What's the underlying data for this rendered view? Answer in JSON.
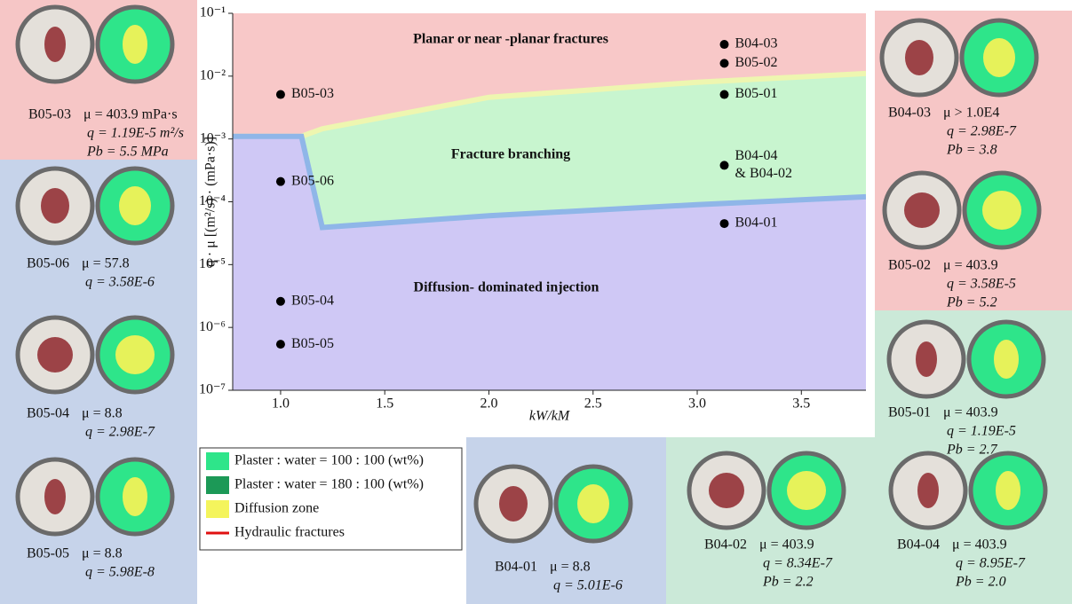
{
  "chart_data": {
    "type": "scatter",
    "x_label": "kW/kM",
    "y_label": "q · μ [(m²/s) · (mPa·s)]",
    "xlim": [
      0.77,
      3.81
    ],
    "ylim": [
      1e-07,
      0.1
    ],
    "log_y": true,
    "xticks": [
      {
        "value": 1,
        "label": "1.0"
      },
      1.5,
      {
        "value": 2,
        "label": "2.0"
      },
      2.5,
      {
        "value": 3,
        "label": "3.0"
      },
      3.5
    ],
    "yticks": [
      {
        "value": 1e-07,
        "label": "10⁻⁷"
      },
      {
        "value": 1e-06,
        "label": "10⁻⁶"
      },
      {
        "value": 1e-05,
        "label": "10⁻⁵"
      },
      {
        "value": 0.0001,
        "label": "10⁻⁴"
      },
      {
        "value": 0.001,
        "label": "10⁻³"
      },
      {
        "value": 0.01,
        "label": "10⁻²"
      },
      {
        "value": 0.1,
        "label": "10⁻¹"
      }
    ],
    "x": [
      1.0,
      1.0,
      1.0,
      1.0,
      3.13,
      3.13,
      3.13,
      3.13,
      3.13
    ],
    "values": [
      0.0051,
      0.00021,
      2.6e-06,
      5.4e-07,
      0.032,
      0.016,
      0.0051,
      0.00038,
      4.5e-05
    ],
    "point_labels": [
      [
        "B05-03"
      ],
      [
        "B05-06"
      ],
      [
        "B05-04"
      ],
      [
        "B05-05"
      ],
      [
        "B04-03"
      ],
      [
        "B05-02"
      ],
      [
        "B05-01"
      ],
      [
        "B04-04",
        "& B04-02"
      ],
      [
        "B04-01"
      ]
    ],
    "color": "#000000",
    "boundaries": {
      "x": [
        0.77,
        1.1,
        1.2,
        2.0,
        3.0,
        3.81
      ],
      "branching_upper": [
        0.0011,
        0.0011,
        0.00145,
        0.0046,
        0.008,
        0.011
      ],
      "diffusion_upper": [
        0.0011,
        0.0011,
        3.9e-05,
        6e-05,
        9e-05,
        0.00012
      ]
    },
    "region_labels": [
      "Planar or near -planar fractures",
      "Fracture branching",
      "Diffusion- dominated injection"
    ],
    "region_colors": [
      "#f8c8c8",
      "#c8f5cf",
      "#cfc8f5"
    ]
  },
  "legend": [
    {
      "label": "Plaster : water  =  100 : 100 (wt%)",
      "color": "#2ee58a"
    },
    {
      "label": "Plaster : water  =  180 : 100 (wt%)",
      "color": "#1c9957"
    },
    {
      "label": "Diffusion zone",
      "color": "#f4f45c"
    },
    {
      "label": "Hydraulic fractures",
      "color": "#e01010"
    }
  ],
  "panels": [
    {
      "id": "B05-03",
      "mu": "μ = 403.9 mPa·s",
      "q": "q = 1.19E-5 m²/s",
      "pb": "Pb = 5.5 MPa"
    },
    {
      "id": "B05-06",
      "mu": "μ = 57.8",
      "q": "q = 3.58E-6"
    },
    {
      "id": "B05-04",
      "mu": "μ = 8.8",
      "q": "q = 2.98E-7"
    },
    {
      "id": "B05-05",
      "mu": "μ = 8.8",
      "q": "q = 5.98E-8"
    },
    {
      "id": "B04-03",
      "mu": "μ > 1.0E4",
      "q": "q = 2.98E-7",
      "pb": "Pb = 3.8"
    },
    {
      "id": "B05-02",
      "mu": "μ = 403.9",
      "q": "q = 3.58E-5",
      "pb": "Pb = 5.2"
    },
    {
      "id": "B05-01",
      "mu": "μ = 403.9",
      "q": "q = 1.19E-5",
      "pb": "Pb = 2.7"
    },
    {
      "id": "B04-01",
      "mu": "μ = 8.8",
      "q": "q = 5.01E-6"
    },
    {
      "id": "B04-02",
      "mu": "μ = 403.9",
      "q": "q = 8.34E-7",
      "pb": "Pb = 2.2"
    },
    {
      "id": "B04-04",
      "mu": "μ = 403.9",
      "q": "q = 8.95E-7",
      "pb": "Pb = 2.0"
    }
  ]
}
